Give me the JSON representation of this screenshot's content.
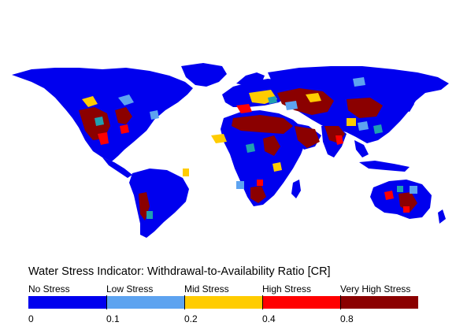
{
  "legend": {
    "title": "Water Stress Indicator: Withdrawal-to-Availability Ratio [CR]",
    "categories": [
      "No Stress",
      "Low Stress",
      "Mid Stress",
      "High Stress",
      "Very High Stress"
    ],
    "ticks": [
      "0",
      "0.1",
      "0.2",
      "0.4",
      "0.8"
    ],
    "colors": [
      "#0000ee",
      "#5da3f0",
      "#ffcc00",
      "#ff0000",
      "#8b0000"
    ]
  }
}
